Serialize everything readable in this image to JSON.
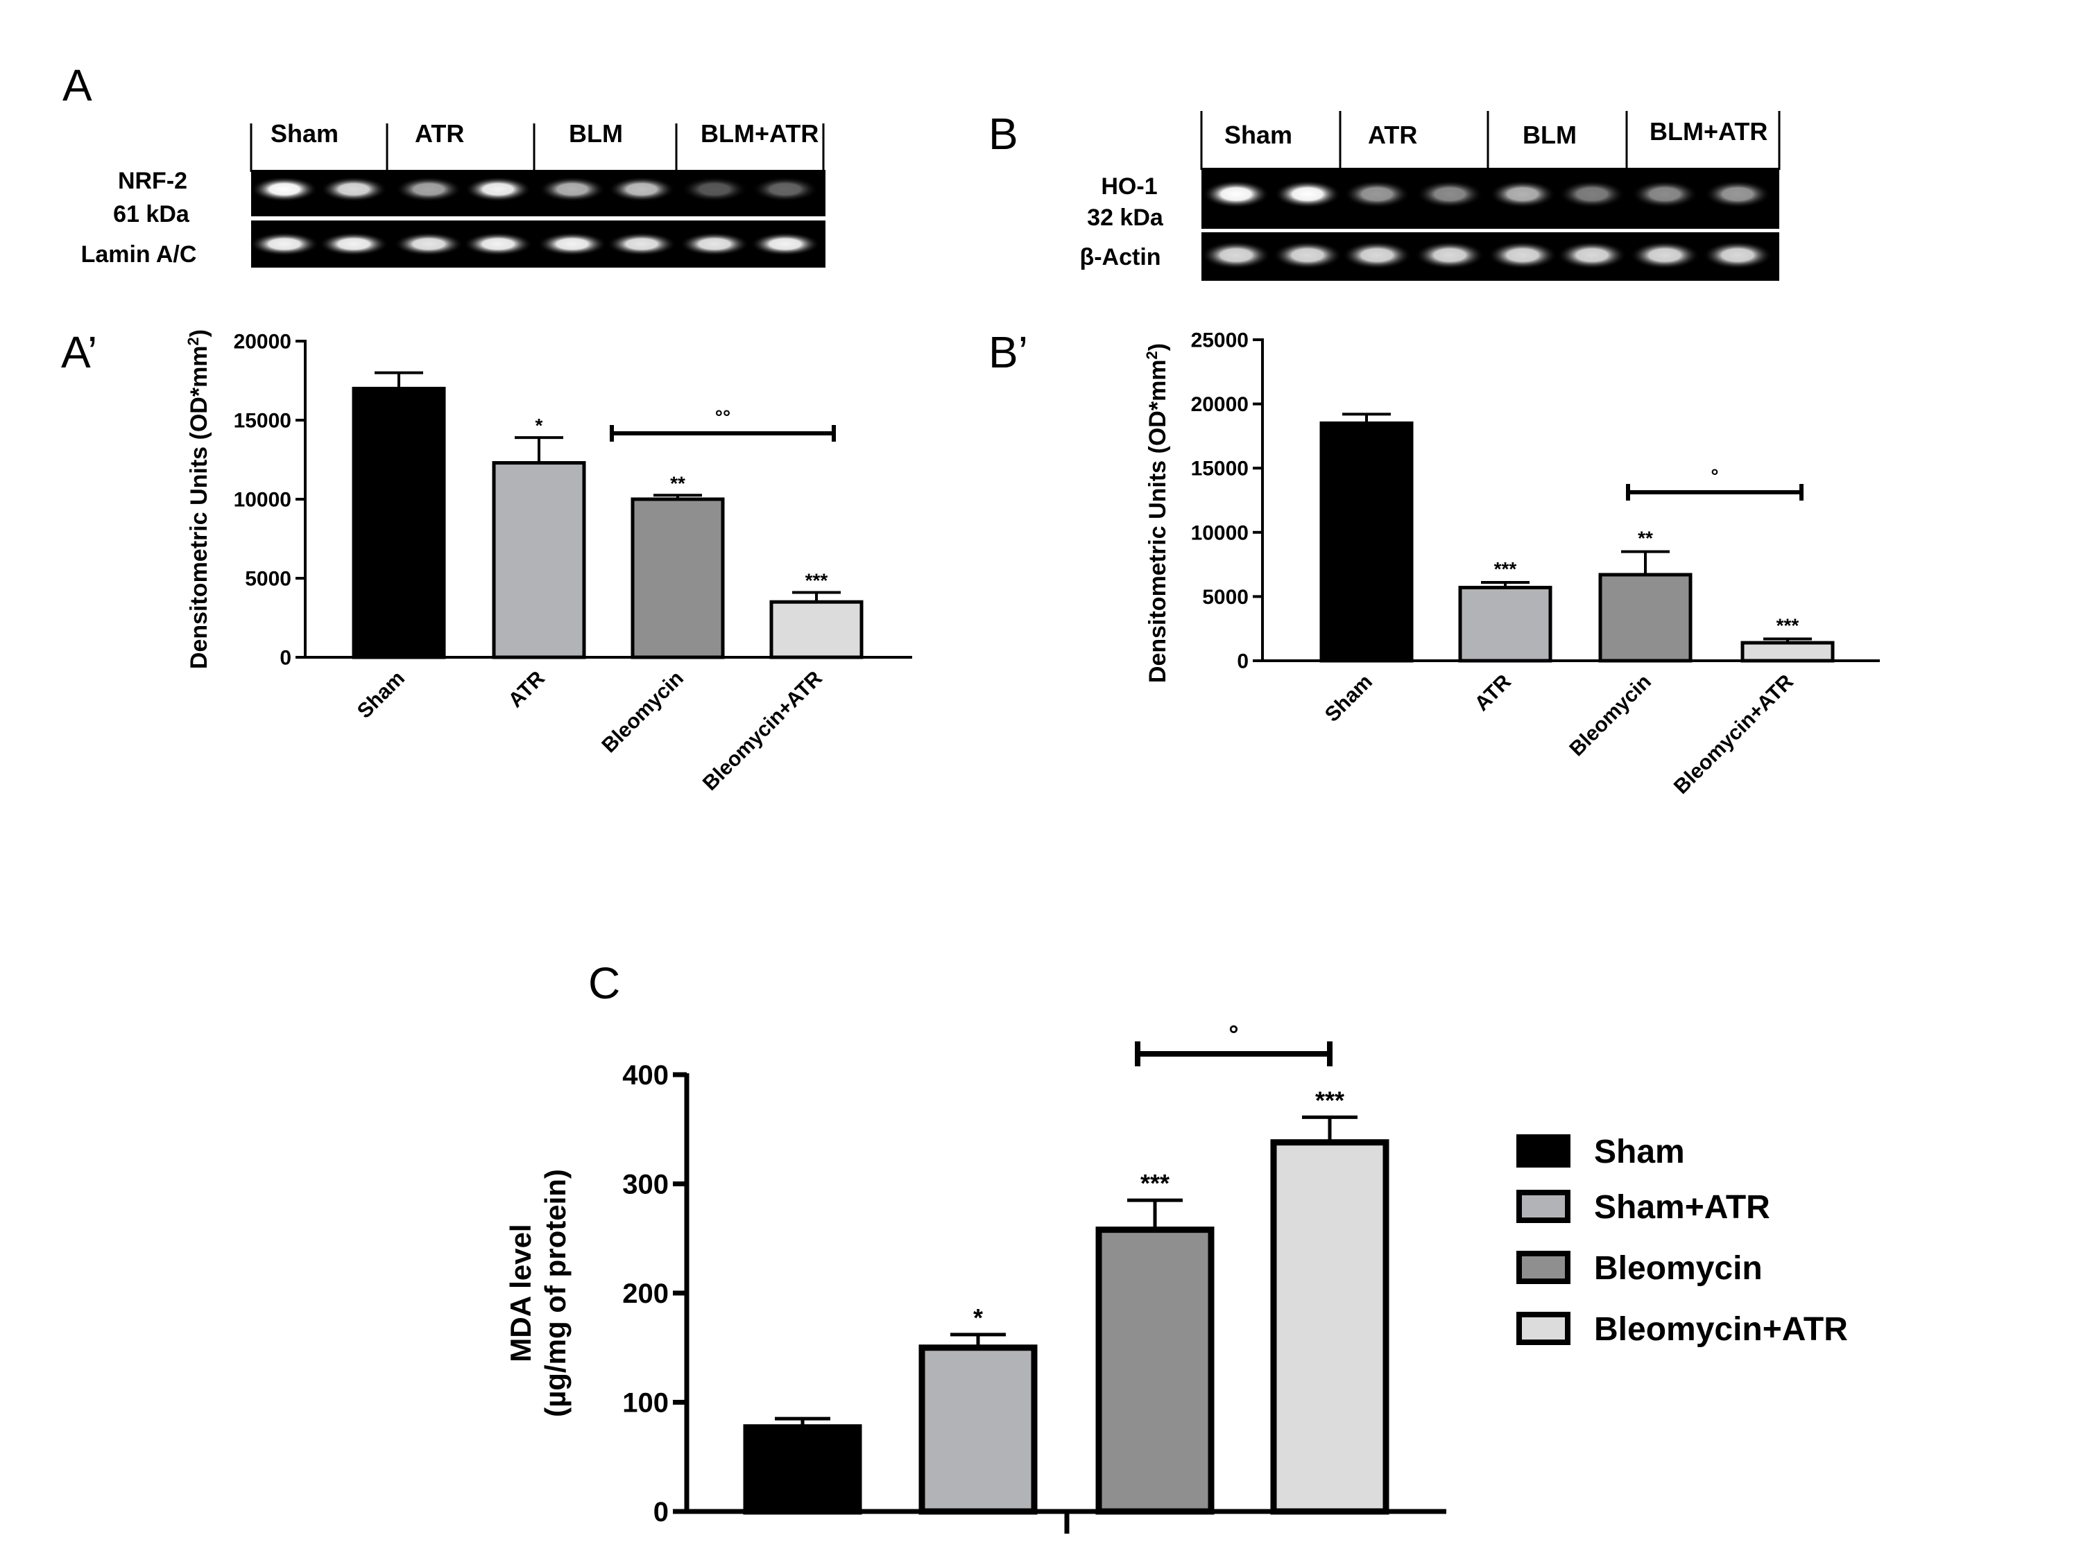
{
  "panels": {
    "A": "A",
    "A_prime": "A’",
    "B": "B",
    "B_prime": "B’",
    "C": "C"
  },
  "blot_A": {
    "lanes": [
      "Sham",
      "ATR",
      "BLM",
      "BLM+ATR"
    ],
    "protein": "NRF-2",
    "weight": "61 kDa",
    "control": "Lamin A/C"
  },
  "blot_B": {
    "lanes": [
      "Sham",
      "ATR",
      "BLM",
      "BLM+ATR"
    ],
    "protein": "HO-1",
    "weight": "32 kDa",
    "control": "β-Actin"
  },
  "colors": {
    "sham": "#000000",
    "atr": "#b2b3b6",
    "bleomycin": "#8f8f8f",
    "bleomycin_atr": "#dcdcdc"
  },
  "chart_data": [
    {
      "id": "A_prime",
      "type": "bar",
      "categories": [
        "Sham",
        "ATR",
        "Bleomycin",
        "Bleomycin+ATR"
      ],
      "values": [
        17000,
        12300,
        10000,
        3500
      ],
      "errors": [
        1000,
        1600,
        250,
        600
      ],
      "significance": [
        "",
        "*",
        "**",
        "***"
      ],
      "bracket": {
        "from": 2,
        "to": 3,
        "label": "°°"
      },
      "ylabel_main": "Densitometric Units (OD*mm",
      "ylabel_sup": "2",
      "ylabel_end": ")",
      "ylim": [
        0,
        20000
      ],
      "yticks": [
        "0",
        "5000",
        "10000",
        "15000",
        "20000"
      ]
    },
    {
      "id": "B_prime",
      "type": "bar",
      "categories": [
        "Sham",
        "ATR",
        "Bleomycin",
        "Bleomycin+ATR"
      ],
      "values": [
        18500,
        5700,
        6700,
        1400
      ],
      "errors": [
        700,
        400,
        1800,
        300
      ],
      "significance": [
        "",
        "***",
        "**",
        "***"
      ],
      "bracket": {
        "from": 2,
        "to": 3,
        "label": "°"
      },
      "ylabel_main": "Densitometric Units (OD*mm",
      "ylabel_sup": "2",
      "ylabel_end": ")",
      "ylim": [
        0,
        25000
      ],
      "yticks": [
        "0",
        "5000",
        "10000",
        "15000",
        "20000",
        "25000"
      ]
    },
    {
      "id": "C",
      "type": "bar",
      "series": [
        {
          "name": "Sham",
          "value": 77,
          "error": 8
        },
        {
          "name": "Sham+ATR",
          "value": 150,
          "error": 12
        },
        {
          "name": "Bleomycin",
          "value": 258,
          "error": 27
        },
        {
          "name": "Bleomycin+ATR",
          "value": 338,
          "error": 23
        }
      ],
      "significance": [
        "",
        "*",
        "***",
        "***"
      ],
      "bracket": {
        "from": 2,
        "to": 3,
        "label": "°"
      },
      "ylabel_line1": "MDA level",
      "ylabel_line2": "(µg/mg of protein)",
      "ylim": [
        0,
        400
      ],
      "yticks": [
        "0",
        "100",
        "200",
        "300",
        "400"
      ],
      "legend": "right"
    }
  ]
}
